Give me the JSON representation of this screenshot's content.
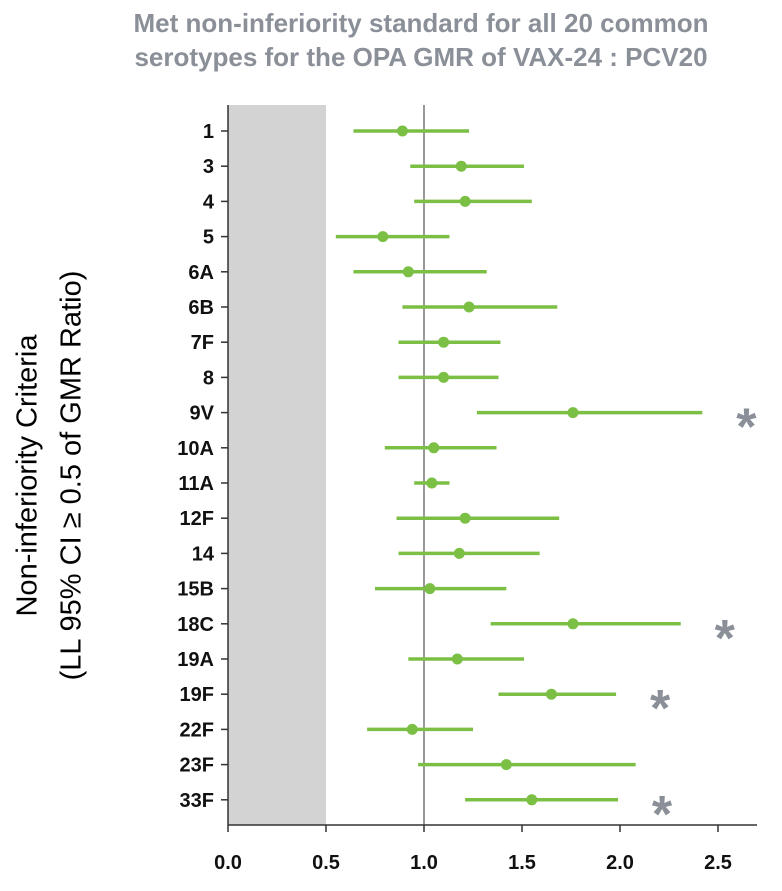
{
  "chart_data": {
    "type": "forest",
    "title_lines": [
      "Met non-inferiority standard for all 20 common",
      "serotypes for the OPA GMR of VAX-24 : PCV20"
    ],
    "ylabel_lines": [
      "Non-inferiority Criteria",
      "(LL 95% CI ≥ 0.5 of GMR Ratio)"
    ],
    "xlim": [
      0,
      2.7
    ],
    "xticks": [
      "0.0",
      "0.5",
      "1.0",
      "1.5",
      "2.0",
      "2.5"
    ],
    "xtick_values": [
      0,
      0.5,
      1.0,
      1.5,
      2.0,
      2.5
    ],
    "shaded_region": [
      0,
      0.5
    ],
    "reference_line": 1.0,
    "asterisk_symbol": "*",
    "series_color": "#7bbf45",
    "shade_color": "#d3d3d3",
    "asterisk_color": "#8a8f98",
    "categories": [
      "1",
      "3",
      "4",
      "5",
      "6A",
      "6B",
      "7F",
      "8",
      "9V",
      "10A",
      "11A",
      "12F",
      "14",
      "15B",
      "18C",
      "19A",
      "19F",
      "22F",
      "23F",
      "33F"
    ],
    "points": [
      {
        "label": "1",
        "gmr": 0.89,
        "lower": 0.64,
        "upper": 1.23,
        "asterisk": false
      },
      {
        "label": "3",
        "gmr": 1.19,
        "lower": 0.93,
        "upper": 1.51,
        "asterisk": false
      },
      {
        "label": "4",
        "gmr": 1.21,
        "lower": 0.95,
        "upper": 1.55,
        "asterisk": false
      },
      {
        "label": "5",
        "gmr": 0.79,
        "lower": 0.55,
        "upper": 1.13,
        "asterisk": false
      },
      {
        "label": "6A",
        "gmr": 0.92,
        "lower": 0.64,
        "upper": 1.32,
        "asterisk": false
      },
      {
        "label": "6B",
        "gmr": 1.23,
        "lower": 0.89,
        "upper": 1.68,
        "asterisk": false
      },
      {
        "label": "7F",
        "gmr": 1.1,
        "lower": 0.87,
        "upper": 1.39,
        "asterisk": false
      },
      {
        "label": "8",
        "gmr": 1.1,
        "lower": 0.87,
        "upper": 1.38,
        "asterisk": false
      },
      {
        "label": "9V",
        "gmr": 1.76,
        "lower": 1.27,
        "upper": 2.42,
        "asterisk": true
      },
      {
        "label": "10A",
        "gmr": 1.05,
        "lower": 0.8,
        "upper": 1.37,
        "asterisk": false
      },
      {
        "label": "11A",
        "gmr": 1.04,
        "lower": 0.95,
        "upper": 1.13,
        "asterisk": false
      },
      {
        "label": "12F",
        "gmr": 1.21,
        "lower": 0.86,
        "upper": 1.69,
        "asterisk": false
      },
      {
        "label": "14",
        "gmr": 1.18,
        "lower": 0.87,
        "upper": 1.59,
        "asterisk": false
      },
      {
        "label": "15B",
        "gmr": 1.03,
        "lower": 0.75,
        "upper": 1.42,
        "asterisk": false
      },
      {
        "label": "18C",
        "gmr": 1.76,
        "lower": 1.34,
        "upper": 2.31,
        "asterisk": true
      },
      {
        "label": "19A",
        "gmr": 1.17,
        "lower": 0.92,
        "upper": 1.51,
        "asterisk": false
      },
      {
        "label": "19F",
        "gmr": 1.65,
        "lower": 1.38,
        "upper": 1.98,
        "asterisk": true
      },
      {
        "label": "22F",
        "gmr": 0.94,
        "lower": 0.71,
        "upper": 1.25,
        "asterisk": false
      },
      {
        "label": "23F",
        "gmr": 1.42,
        "lower": 0.97,
        "upper": 2.08,
        "asterisk": false
      },
      {
        "label": "33F",
        "gmr": 1.55,
        "lower": 1.21,
        "upper": 1.99,
        "asterisk": true
      }
    ]
  }
}
